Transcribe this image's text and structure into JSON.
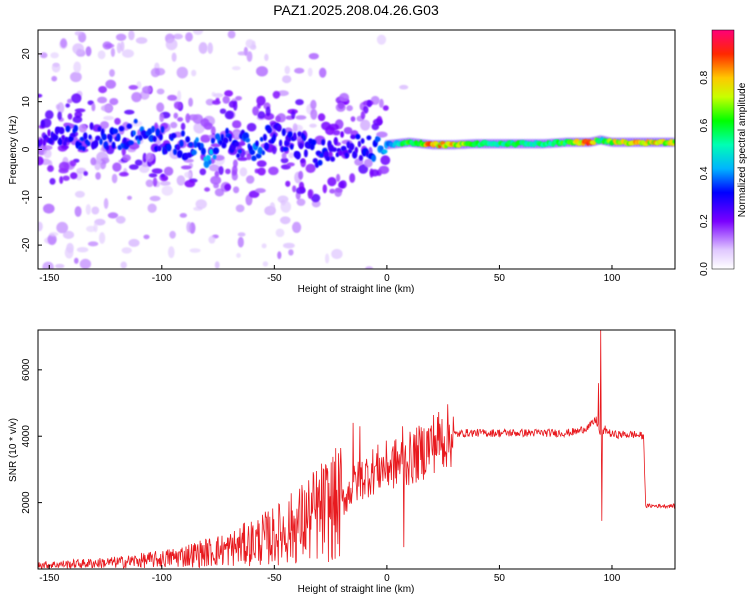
{
  "title": "PAZ1.2025.208.04.26.G03",
  "colors": {
    "snr_line": "#e8191e",
    "axis": "#000000",
    "heatmap_low": "#e6d8ff",
    "heatmap_mid": "#4a00ff",
    "heatmap_high": "#ff0000"
  },
  "chart_data": [
    {
      "type": "heatmap",
      "xlabel": "Height of straight line (km)",
      "ylabel": "Frequency (Hz)",
      "xlim": [
        -155,
        128
      ],
      "ylim": [
        -25,
        25
      ],
      "x_ticks": [
        "-150",
        "-100",
        "-50",
        "0",
        "50",
        "100"
      ],
      "x_tick_values": [
        -150,
        -100,
        -50,
        0,
        50,
        100
      ],
      "y_ticks": [
        "-20",
        "-10",
        "0",
        "10",
        "20"
      ],
      "y_tick_values": [
        -20,
        -10,
        0,
        10,
        20
      ],
      "colorbar": {
        "label": "Normalized spectral amplitude",
        "range": [
          0,
          1
        ],
        "ticks": [
          "0.0",
          "0.2",
          "0.4",
          "0.6",
          "0.8"
        ],
        "tick_values": [
          0.0,
          0.2,
          0.4,
          0.6,
          0.8
        ]
      },
      "ridge": {
        "x": [
          -150,
          -140,
          -130,
          -120,
          -110,
          -100,
          -90,
          -80,
          -70,
          -60,
          -50,
          -40,
          -30,
          -20,
          -10,
          0,
          10,
          20,
          30,
          40,
          50,
          60,
          70,
          80,
          90,
          95,
          100,
          110,
          120,
          128
        ],
        "freq": [
          3,
          2,
          3,
          2,
          4,
          2,
          1,
          -1,
          2,
          0,
          3,
          1,
          -1,
          1,
          0,
          1,
          1.5,
          1,
          1,
          1.2,
          1.2,
          1.2,
          1.2,
          1.5,
          1.5,
          2,
          1.5,
          1.5,
          1.5,
          1.5
        ],
        "amplitude": [
          0.25,
          0.3,
          0.3,
          0.3,
          0.35,
          0.3,
          0.3,
          0.4,
          0.3,
          0.35,
          0.3,
          0.3,
          0.3,
          0.25,
          0.3,
          0.4,
          0.6,
          0.8,
          0.75,
          0.55,
          0.55,
          0.55,
          0.55,
          0.6,
          0.85,
          0.5,
          0.7,
          0.75,
          0.75,
          0.7
        ]
      }
    },
    {
      "type": "line",
      "xlabel": "Height of straight line (km)",
      "ylabel": "SNR (10 * v/v)",
      "xlim": [
        -155,
        128
      ],
      "ylim": [
        0,
        7200
      ],
      "x_ticks": [
        "-150",
        "-100",
        "-50",
        "0",
        "50",
        "100"
      ],
      "x_tick_values": [
        -150,
        -100,
        -50,
        0,
        50,
        100
      ],
      "y_ticks": [
        "2000",
        "4000",
        "6000"
      ],
      "y_tick_values": [
        2000,
        4000,
        6000
      ],
      "x": [
        -155,
        -140,
        -120,
        -100,
        -90,
        -80,
        -70,
        -60,
        -50,
        -40,
        -30,
        -20,
        -15,
        -10,
        -5,
        0,
        5,
        10,
        15,
        20,
        25,
        30,
        35,
        40,
        50,
        60,
        70,
        80,
        85,
        90,
        93,
        95,
        97,
        100,
        110,
        114,
        115,
        120,
        128
      ],
      "y": [
        120,
        150,
        200,
        300,
        400,
        500,
        600,
        800,
        1000,
        1300,
        1700,
        2000,
        2500,
        2800,
        3000,
        3100,
        3200,
        3300,
        3500,
        3800,
        3950,
        4050,
        4100,
        4100,
        4100,
        4100,
        4100,
        4100,
        4150,
        4300,
        4500,
        4000,
        4200,
        4050,
        4050,
        4000,
        1900,
        1900,
        1900
      ],
      "spikes": [
        {
          "x": -15,
          "y": 4400
        },
        {
          "x": -12,
          "y": 4300
        },
        {
          "x": 7,
          "y": 4300
        },
        {
          "x": 7.5,
          "y": 660
        },
        {
          "x": 94,
          "y": 5600
        },
        {
          "x": 95,
          "y": 7200
        },
        {
          "x": 95.5,
          "y": 1450
        }
      ]
    }
  ]
}
